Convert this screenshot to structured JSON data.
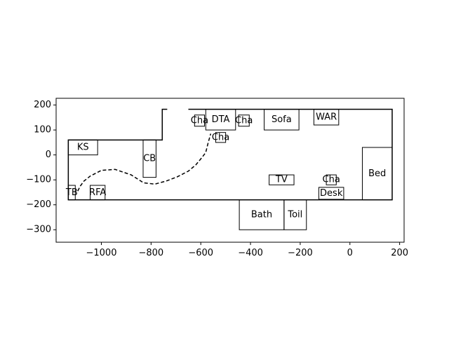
{
  "chart_data": {
    "type": "floor-plan",
    "xlim": [
      -1182,
      218
    ],
    "ylim": [
      -350,
      227
    ],
    "x_ticks": [
      -1000,
      -800,
      -600,
      -400,
      -200,
      0,
      200
    ],
    "y_ticks": [
      200,
      100,
      0,
      -100,
      -200,
      -300
    ],
    "x_tick_labels": [
      "−1000",
      "−800",
      "−600",
      "−400",
      "−200",
      "0",
      "200"
    ],
    "y_tick_labels": [
      "200",
      "100",
      "0",
      "−100",
      "−200",
      "−300"
    ],
    "walls": [
      [
        [
          -650,
          183
        ],
        [
          170,
          183
        ],
        [
          170,
          -180
        ],
        [
          -1133,
          -180
        ],
        [
          -1133,
          60
        ],
        [
          -755,
          60
        ],
        [
          -755,
          183
        ],
        [
          -735,
          183
        ]
      ]
    ],
    "path": [
      [
        -1095,
        -145
      ],
      [
        -1085,
        -125
      ],
      [
        -1070,
        -105
      ],
      [
        -1045,
        -85
      ],
      [
        -1000,
        -62
      ],
      [
        -945,
        -58
      ],
      [
        -880,
        -80
      ],
      [
        -830,
        -112
      ],
      [
        -785,
        -117
      ],
      [
        -740,
        -105
      ],
      [
        -695,
        -88
      ],
      [
        -650,
        -65
      ],
      [
        -620,
        -40
      ],
      [
        -595,
        -10
      ],
      [
        -580,
        10
      ],
      [
        -570,
        50
      ],
      [
        -560,
        85
      ]
    ],
    "furniture": [
      {
        "label": "KS",
        "x0": -1133,
        "x1": -1015,
        "y0": 0,
        "y1": 60
      },
      {
        "label": "CB",
        "x0": -832,
        "x1": -780,
        "y0": -90,
        "y1": 60
      },
      {
        "label": "TB",
        "x0": -1133,
        "x1": -1105,
        "y0": -180,
        "y1": -122
      },
      {
        "label": "RFA",
        "x0": -1045,
        "x1": -985,
        "y0": -180,
        "y1": -122
      },
      {
        "label": "Cha",
        "x0": -625,
        "x1": -585,
        "y0": 115,
        "y1": 160
      },
      {
        "label": "DTA",
        "x0": -580,
        "x1": -460,
        "y0": 100,
        "y1": 183
      },
      {
        "label": "Cha",
        "x0": -448,
        "x1": -405,
        "y0": 115,
        "y1": 160
      },
      {
        "label": "Cha",
        "x0": -540,
        "x1": -500,
        "y0": 50,
        "y1": 90
      },
      {
        "label": "Sofa",
        "x0": -345,
        "x1": -205,
        "y0": 100,
        "y1": 183
      },
      {
        "label": "WAR",
        "x0": -145,
        "x1": -45,
        "y0": 120,
        "y1": 183
      },
      {
        "label": "Bed",
        "x0": 50,
        "x1": 170,
        "y0": -180,
        "y1": 30
      },
      {
        "label": "TV",
        "x0": -325,
        "x1": -225,
        "y0": -120,
        "y1": -80
      },
      {
        "label": "Cha",
        "x0": -95,
        "x1": -55,
        "y0": -120,
        "y1": -80
      },
      {
        "label": "Desk",
        "x0": -125,
        "x1": -25,
        "y0": -178,
        "y1": -130
      },
      {
        "label": "Bath",
        "x0": -445,
        "x1": -265,
        "y0": -300,
        "y1": -180
      },
      {
        "label": "Toil",
        "x0": -265,
        "x1": -175,
        "y0": -300,
        "y1": -180
      }
    ]
  }
}
